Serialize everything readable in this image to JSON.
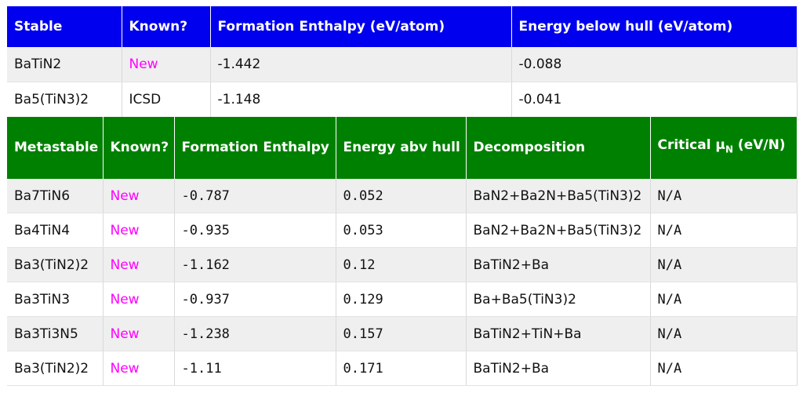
{
  "stable_table": {
    "headers": [
      "Stable",
      "Known?",
      "Formation Enthalpy (eV/atom)",
      "Energy below hull (eV/atom)"
    ],
    "rows": [
      {
        "name": "BaTiN2",
        "known": "New",
        "formation": "-1.442",
        "hull": "-0.088"
      },
      {
        "name": "Ba5(TiN3)2",
        "known": "ICSD",
        "formation": "-1.148",
        "hull": "-0.041"
      }
    ]
  },
  "metastable_table": {
    "headers": {
      "name": "Metastable",
      "known": "Known?",
      "formation": "Formation Enthalpy",
      "hull": "Energy abv hull",
      "decomposition": "Decomposition",
      "critical_prefix": "Critical μ",
      "critical_sub": "N",
      "critical_suffix": " (eV/N)"
    },
    "rows": [
      {
        "name": "Ba7TiN6",
        "known": "New",
        "formation": "-0.787",
        "hull": "0.052",
        "decomposition": "BaN2+Ba2N+Ba5(TiN3)2",
        "critical": "N/A"
      },
      {
        "name": "Ba4TiN4",
        "known": "New",
        "formation": "-0.935",
        "hull": "0.053",
        "decomposition": "BaN2+Ba2N+Ba5(TiN3)2",
        "critical": "N/A"
      },
      {
        "name": "Ba3(TiN2)2",
        "known": "New",
        "formation": "-1.162",
        "hull": "0.12",
        "decomposition": "BaTiN2+Ba",
        "critical": "N/A"
      },
      {
        "name": "Ba3TiN3",
        "known": "New",
        "formation": "-0.937",
        "hull": "0.129",
        "decomposition": "Ba+Ba5(TiN3)2",
        "critical": "N/A"
      },
      {
        "name": "Ba3Ti3N5",
        "known": "New",
        "formation": "-1.238",
        "hull": "0.157",
        "decomposition": "BaTiN2+TiN+Ba",
        "critical": "N/A"
      },
      {
        "name": "Ba3(TiN2)2",
        "known": "New",
        "formation": "-1.11",
        "hull": "0.171",
        "decomposition": "BaTiN2+Ba",
        "critical": "N/A"
      }
    ]
  },
  "colors": {
    "stable_header": "#0000ee",
    "metastable_header": "#008000",
    "new_text": "#ff00ff",
    "row_alt": "#efefef"
  }
}
